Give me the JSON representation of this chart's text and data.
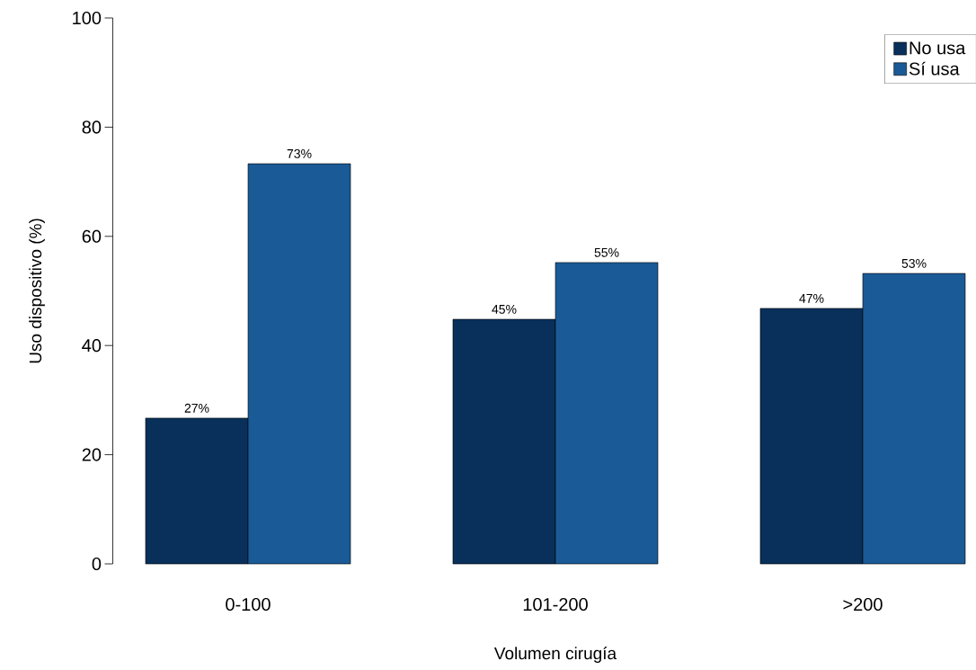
{
  "chart_data": {
    "type": "bar",
    "xlabel": "Volumen cirugía",
    "ylabel": "Uso dispositivo (%)",
    "categories": [
      "0-100",
      "101-200",
      ">200"
    ],
    "series": [
      {
        "name": "No usa",
        "color": "#08305a",
        "values": [
          26.7,
          44.8,
          46.8
        ],
        "value_labels": [
          "27%",
          "45%",
          "47%"
        ]
      },
      {
        "name": "Sí usa",
        "color": "#1a5a96",
        "values": [
          73.3,
          55.2,
          53.2
        ],
        "value_labels": [
          "73%",
          "55%",
          "53%"
        ]
      }
    ],
    "ylim": [
      0,
      100
    ],
    "yticks": [
      0,
      20,
      40,
      60,
      80,
      100
    ],
    "grid": false,
    "legend": "top right"
  }
}
